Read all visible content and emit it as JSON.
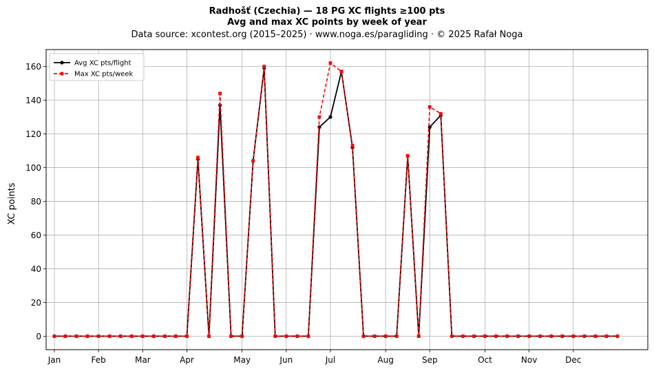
{
  "chart_data": {
    "type": "line",
    "title": "Radhošť (Czechia)  —  18 PG XC flights ≥100 pts",
    "title2": "Avg and max XC points by week of year",
    "subtitle": "Data source: xcontest.org (2015–2025)  ·  www.noga.es/paragliding  ·  © 2025 Rafał Noga",
    "xlabel": "",
    "ylabel": "XC points",
    "xlim": [
      -0.75,
      53.75
    ],
    "ylim": [
      -8,
      170
    ],
    "yticks": [
      0,
      20,
      40,
      60,
      80,
      100,
      120,
      140,
      160
    ],
    "x_ticks": [
      {
        "label": "Jan",
        "x": 0
      },
      {
        "label": "Feb",
        "x": 4
      },
      {
        "label": "Mar",
        "x": 8
      },
      {
        "label": "Apr",
        "x": 12
      },
      {
        "label": "May",
        "x": 17
      },
      {
        "label": "Jun",
        "x": 21
      },
      {
        "label": "Jul",
        "x": 25
      },
      {
        "label": "Aug",
        "x": 30
      },
      {
        "label": "Sep",
        "x": 34
      },
      {
        "label": "Oct",
        "x": 39
      },
      {
        "label": "Nov",
        "x": 43
      },
      {
        "label": "Dec",
        "x": 47
      }
    ],
    "grid": true,
    "legend_position": "top-left",
    "series": [
      {
        "name": "Avg XC pts/flight",
        "color": "#000000",
        "marker": "circle",
        "linestyle": "solid",
        "values": [
          0,
          0,
          0,
          0,
          0,
          0,
          0,
          0,
          0,
          0,
          0,
          0,
          0,
          105,
          0,
          137,
          0,
          0,
          104,
          159,
          0,
          0,
          0,
          0,
          124,
          130,
          157,
          112,
          0,
          0,
          0,
          0,
          107,
          0,
          124,
          131,
          0,
          0,
          0,
          0,
          0,
          0,
          0,
          0,
          0,
          0,
          0,
          0,
          0,
          0,
          0,
          0
        ]
      },
      {
        "name": "Max XC pts/week",
        "color": "#ff0000",
        "marker": "square",
        "linestyle": "dashed",
        "values": [
          0,
          0,
          0,
          0,
          0,
          0,
          0,
          0,
          0,
          0,
          0,
          0,
          0,
          106,
          0,
          144,
          0,
          0,
          104,
          160,
          0,
          0,
          0,
          0,
          130,
          162,
          157,
          113,
          0,
          0,
          0,
          0,
          107,
          0,
          136,
          132,
          0,
          0,
          0,
          0,
          0,
          0,
          0,
          0,
          0,
          0,
          0,
          0,
          0,
          0,
          0,
          0
        ]
      }
    ]
  }
}
